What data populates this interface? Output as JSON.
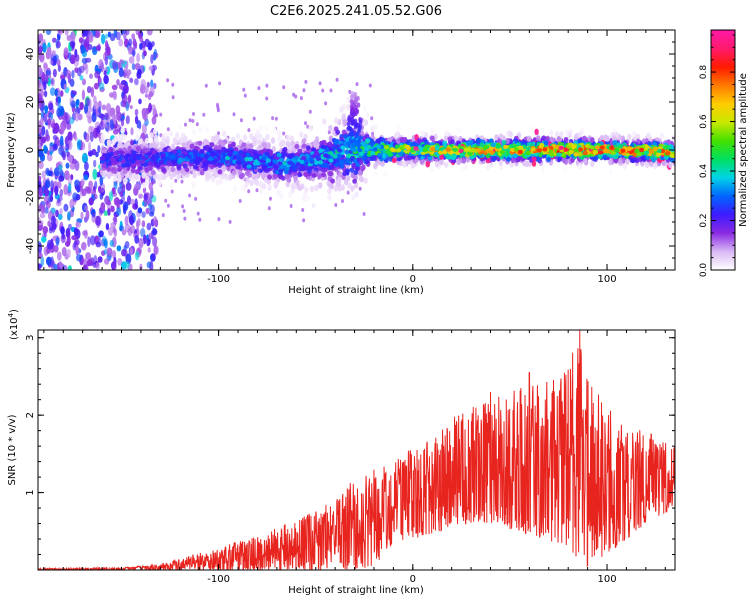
{
  "title": "C2E6.2025.241.05.52.G06",
  "colors": {
    "line": "#e8241f",
    "axis": "#000000",
    "background": "#ffffff"
  },
  "chart_data": [
    {
      "type": "heatmap",
      "title": "C2E6.2025.241.05.52.G06",
      "xlabel": "Height of straight line (km)",
      "ylabel": "Frequency (Hz)",
      "xlim": [
        -193,
        135
      ],
      "ylim": [
        -50,
        50
      ],
      "x_ticks": [
        -100,
        0,
        100
      ],
      "x_tick_labels": [
        "-100",
        "0",
        "100"
      ],
      "y_ticks": [
        -40,
        -20,
        0,
        20,
        40
      ],
      "y_tick_labels": [
        "-40",
        "-20",
        "0",
        "20",
        "40"
      ],
      "colorbar": {
        "label": "Normalized spectral amplitude",
        "range": [
          0,
          0.97
        ],
        "ticks": [
          0.0,
          0.2,
          0.4,
          0.6,
          0.8
        ],
        "tick_labels": [
          "0.0",
          "0.2",
          "0.4",
          "0.6",
          "0.8"
        ],
        "colormap": [
          "#ffffff",
          "#d9b8f5",
          "#8a2be2",
          "#3d1bff",
          "#0066ff",
          "#00d4e6",
          "#00e060",
          "#44e000",
          "#c8e800",
          "#ffcc00",
          "#ff7a00",
          "#ff1a00",
          "#ff1a6e",
          "#ff1aa8"
        ]
      },
      "features": {
        "noisy_region_x": [
          -193,
          -140
        ],
        "band_center_hz": [
          [
            -150,
            -4
          ],
          [
            -100,
            -3
          ],
          [
            -60,
            -6
          ],
          [
            -40,
            -2
          ],
          [
            -30,
            0
          ],
          [
            0,
            0
          ],
          [
            50,
            0
          ],
          [
            100,
            0
          ],
          [
            135,
            -1
          ]
        ],
        "band_halfwidth_hz": [
          [
            -150,
            5
          ],
          [
            -100,
            5
          ],
          [
            -60,
            6
          ],
          [
            -30,
            10
          ],
          [
            -20,
            4
          ],
          [
            0,
            3
          ],
          [
            135,
            3
          ]
        ],
        "band_amplitude": [
          [
            -150,
            0.25
          ],
          [
            -100,
            0.35
          ],
          [
            -50,
            0.35
          ],
          [
            -20,
            0.5
          ],
          [
            0,
            0.65
          ],
          [
            50,
            0.75
          ],
          [
            100,
            0.8
          ],
          [
            135,
            0.7
          ]
        ],
        "spike": {
          "x": -30,
          "freq_range": [
            0,
            24
          ]
        }
      }
    },
    {
      "type": "line",
      "xlabel": "Height of straight line (km)",
      "ylabel": "SNR (10 * v/v)",
      "y_scale_label": "(x10",
      "y_scale_exponent": "4",
      "xlim": [
        -193,
        135
      ],
      "ylim": [
        0,
        3.1
      ],
      "x_ticks": [
        -100,
        0,
        100
      ],
      "x_tick_labels": [
        "-100",
        "0",
        "100"
      ],
      "y_ticks": [
        1,
        2,
        3
      ],
      "y_tick_labels": [
        "1",
        "2",
        "3"
      ],
      "envelope": {
        "x": [
          -193,
          -150,
          -130,
          -120,
          -100,
          -80,
          -60,
          -40,
          -30,
          -20,
          -10,
          0,
          20,
          40,
          60,
          80,
          85,
          90,
          100,
          120,
          135
        ],
        "lower": [
          0.0,
          0.0,
          0.0,
          0.0,
          0.0,
          0.0,
          0.0,
          0.0,
          0.0,
          0.05,
          0.35,
          0.4,
          0.55,
          0.6,
          0.45,
          0.3,
          0.1,
          0.05,
          0.2,
          0.6,
          0.8
        ],
        "upper": [
          0.02,
          0.03,
          0.08,
          0.15,
          0.3,
          0.45,
          0.65,
          0.9,
          1.2,
          1.3,
          1.4,
          1.6,
          2.0,
          2.2,
          2.4,
          2.6,
          3.1,
          2.5,
          2.1,
          1.8,
          1.6
        ]
      },
      "peaks": [
        {
          "x": 86,
          "y": 3.1
        },
        {
          "x": 78,
          "y": 2.55
        },
        {
          "x": 60,
          "y": 2.55
        },
        {
          "x": 40,
          "y": 2.3
        }
      ]
    }
  ]
}
